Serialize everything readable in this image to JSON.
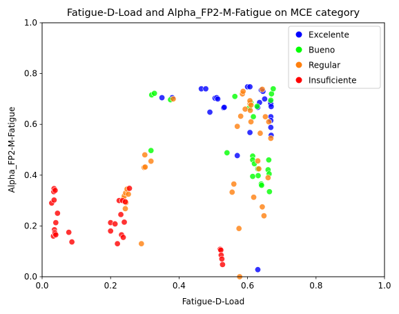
{
  "chart_data": {
    "type": "scatter",
    "title": "Fatigue-D-Load and Alpha_FP2-M-Fatigue on MCE category",
    "xlabel": "Fatigue-D-Load",
    "ylabel": "Alpha_FP2-M-Fatigue",
    "xlim": [
      0.0,
      1.0
    ],
    "ylim": [
      0.0,
      1.0
    ],
    "xticks": [
      "0.0",
      "0.2",
      "0.4",
      "0.6",
      "0.8",
      "1.0"
    ],
    "yticks": [
      "0.0",
      "0.2",
      "0.4",
      "0.6",
      "0.8",
      "1.0"
    ],
    "grid": false,
    "legend_position": "top-right",
    "series": [
      {
        "name": "Excelente",
        "color": "#0000ff",
        "points": [
          [
            0.35,
            0.705
          ],
          [
            0.38,
            0.705
          ],
          [
            0.465,
            0.74
          ],
          [
            0.478,
            0.74
          ],
          [
            0.49,
            0.648
          ],
          [
            0.505,
            0.703
          ],
          [
            0.51,
            0.705
          ],
          [
            0.513,
            0.7
          ],
          [
            0.53,
            0.665
          ],
          [
            0.532,
            0.667
          ],
          [
            0.57,
            0.477
          ],
          [
            0.6,
            0.748
          ],
          [
            0.607,
            0.748
          ],
          [
            0.607,
            0.568
          ],
          [
            0.63,
            0.667
          ],
          [
            0.635,
            0.686
          ],
          [
            0.64,
            0.735
          ],
          [
            0.645,
            0.73
          ],
          [
            0.667,
            0.688
          ],
          [
            0.668,
            0.68
          ],
          [
            0.669,
            0.67
          ],
          [
            0.668,
            0.63
          ],
          [
            0.668,
            0.615
          ],
          [
            0.668,
            0.588
          ],
          [
            0.669,
            0.557
          ],
          [
            0.63,
            0.028
          ],
          [
            0.65,
            0.7
          ]
        ]
      },
      {
        "name": "Bueno",
        "color": "#00ff00",
        "points": [
          [
            0.32,
            0.716
          ],
          [
            0.328,
            0.722
          ],
          [
            0.318,
            0.497
          ],
          [
            0.375,
            0.697
          ],
          [
            0.54,
            0.488
          ],
          [
            0.563,
            0.71
          ],
          [
            0.605,
            0.665
          ],
          [
            0.61,
            0.685
          ],
          [
            0.615,
            0.475
          ],
          [
            0.617,
            0.63
          ],
          [
            0.628,
            0.671
          ],
          [
            0.631,
            0.398
          ],
          [
            0.615,
            0.46
          ],
          [
            0.62,
            0.445
          ],
          [
            0.63,
            0.425
          ],
          [
            0.64,
            0.365
          ],
          [
            0.641,
            0.36
          ],
          [
            0.66,
            0.421
          ],
          [
            0.662,
            0.46
          ],
          [
            0.663,
            0.405
          ],
          [
            0.664,
            0.335
          ],
          [
            0.668,
            0.695
          ],
          [
            0.67,
            0.72
          ],
          [
            0.675,
            0.74
          ],
          [
            0.615,
            0.395
          ]
        ]
      },
      {
        "name": "Regular",
        "color": "#ff7f0e",
        "points": [
          [
            0.237,
            0.307
          ],
          [
            0.24,
            0.318
          ],
          [
            0.244,
            0.33
          ],
          [
            0.248,
            0.345
          ],
          [
            0.252,
            0.325
          ],
          [
            0.243,
            0.268
          ],
          [
            0.245,
            0.292
          ],
          [
            0.29,
            0.13
          ],
          [
            0.298,
            0.43
          ],
          [
            0.3,
            0.48
          ],
          [
            0.318,
            0.455
          ],
          [
            0.383,
            0.7
          ],
          [
            0.555,
            0.333
          ],
          [
            0.56,
            0.365
          ],
          [
            0.57,
            0.592
          ],
          [
            0.575,
            0.19
          ],
          [
            0.577,
            0.0
          ],
          [
            0.58,
            0.632
          ],
          [
            0.585,
            0.72
          ],
          [
            0.587,
            0.73
          ],
          [
            0.593,
            0.66
          ],
          [
            0.607,
            0.682
          ],
          [
            0.607,
            0.693
          ],
          [
            0.608,
            0.655
          ],
          [
            0.61,
            0.676
          ],
          [
            0.618,
            0.313
          ],
          [
            0.63,
            0.456
          ],
          [
            0.633,
            0.425
          ],
          [
            0.637,
            0.565
          ],
          [
            0.643,
            0.275
          ],
          [
            0.643,
            0.738
          ],
          [
            0.648,
            0.24
          ],
          [
            0.652,
            0.63
          ],
          [
            0.66,
            0.39
          ],
          [
            0.662,
            0.61
          ],
          [
            0.668,
            0.545
          ],
          [
            0.61,
            0.61
          ],
          [
            0.301,
            0.432
          ]
        ]
      },
      {
        "name": "Insuficiente",
        "color": "#ff0000",
        "points": [
          [
            0.028,
            0.29
          ],
          [
            0.033,
            0.16
          ],
          [
            0.034,
            0.335
          ],
          [
            0.035,
            0.347
          ],
          [
            0.035,
            0.302
          ],
          [
            0.036,
            0.185
          ],
          [
            0.037,
            0.175
          ],
          [
            0.038,
            0.17
          ],
          [
            0.038,
            0.34
          ],
          [
            0.04,
            0.213
          ],
          [
            0.045,
            0.25
          ],
          [
            0.04,
            0.165
          ],
          [
            0.078,
            0.175
          ],
          [
            0.087,
            0.137
          ],
          [
            0.2,
            0.18
          ],
          [
            0.2,
            0.213
          ],
          [
            0.213,
            0.208
          ],
          [
            0.22,
            0.13
          ],
          [
            0.225,
            0.3
          ],
          [
            0.23,
            0.245
          ],
          [
            0.232,
            0.165
          ],
          [
            0.235,
            0.3
          ],
          [
            0.237,
            0.155
          ],
          [
            0.24,
            0.215
          ],
          [
            0.243,
            0.295
          ],
          [
            0.255,
            0.348
          ],
          [
            0.52,
            0.108
          ],
          [
            0.522,
            0.105
          ],
          [
            0.523,
            0.085
          ],
          [
            0.525,
            0.07
          ],
          [
            0.527,
            0.048
          ]
        ]
      }
    ]
  }
}
